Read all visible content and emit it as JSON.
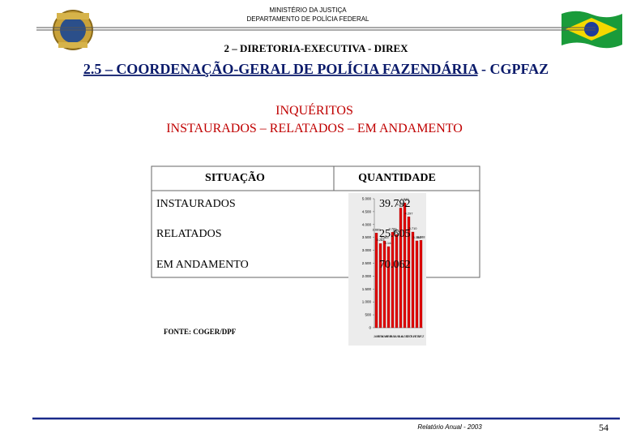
{
  "header": {
    "ministry": "MINISTÉRIO DA JUSTIÇA",
    "department": "DEPARTAMENTO DE POLÍCIA FEDERAL",
    "section": "2 – DIRETORIA-EXECUTIVA - DIREX",
    "title_main": "2.5 – COORDENAÇÃO-GERAL DE POLÍCIA FAZENDÁRIA",
    "title_suffix": " - CGPFAZ"
  },
  "subtitle": [
    "INQUÉRITOS",
    "INSTAURADOS – RELATADOS – EM ANDAMENTO"
  ],
  "table": {
    "columns": [
      "SITUAÇÃO",
      "QUANTIDADE"
    ],
    "rows": [
      [
        "INSTAURADOS",
        "39.792"
      ],
      [
        "RELATADOS",
        "25.605"
      ],
      [
        "EM ANDAMENTO",
        "70.062"
      ]
    ]
  },
  "chart_data": {
    "type": "bar",
    "categories": [
      "JAN",
      "FEV",
      "MAR",
      "ABR",
      "MAI",
      "JUN",
      "JUL",
      "AGO",
      "SET",
      "OUT",
      "NOV",
      "DEZ"
    ],
    "values": [
      3669,
      3263,
      3363,
      3144,
      3700,
      3612,
      4640,
      4840,
      4297,
      3710,
      3366,
      3388
    ],
    "value_labels": [
      "3.669",
      "3.263",
      "3.363",
      "3.144",
      "3.700",
      "3.612",
      "4.640",
      "4.840",
      "4.297",
      "3.710",
      "3.366",
      "3.388"
    ],
    "color": "#e00000",
    "ylim": [
      0,
      5000
    ],
    "yticks": [
      0,
      {
        "value": 500,
        "label": "500"
      },
      {
        "value": 1000,
        "label": "1.000"
      },
      {
        "value": 1500,
        "label": "1.500"
      },
      {
        "value": 2000,
        "label": "2.000"
      },
      {
        "value": 2500,
        "label": "2.500"
      },
      {
        "value": 3000,
        "label": "3.000"
      },
      {
        "value": 3500,
        "label": "3.500"
      },
      {
        "value": 4000,
        "label": "4.000"
      },
      {
        "value": 4500,
        "label": "4.500"
      },
      {
        "value": 5000,
        "label": "5.000"
      }
    ]
  },
  "source": "FONTE: COGER/DPF",
  "footer": {
    "report": "Relatório Anual - 2003",
    "page": "54"
  }
}
